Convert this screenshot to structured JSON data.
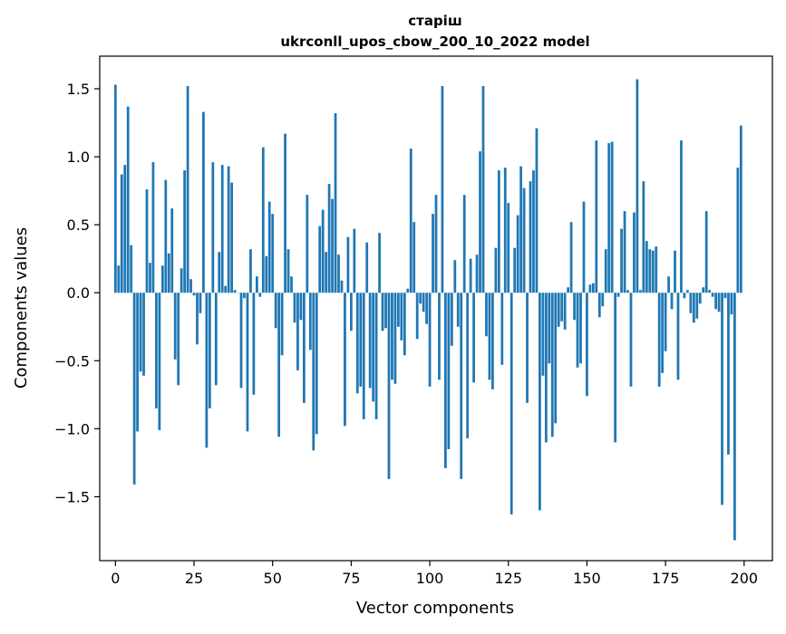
{
  "chart_data": {
    "type": "bar",
    "title_line1": "старіш",
    "title_line2": "ukrconll_upos_cbow_200_10_2022 model",
    "xlabel": "Vector components",
    "ylabel": "Components values",
    "xlim": [
      -5,
      209
    ],
    "ylim": [
      -1.97,
      1.74
    ],
    "xticks": [
      0,
      25,
      50,
      75,
      100,
      125,
      150,
      175,
      200
    ],
    "xtick_labels": [
      "0",
      "25",
      "50",
      "75",
      "100",
      "125",
      "150",
      "175",
      "200"
    ],
    "yticks": [
      -1.5,
      -1.0,
      -0.5,
      0.0,
      0.5,
      1.0,
      1.5
    ],
    "ytick_labels": [
      "−1.5",
      "−1.0",
      "−0.5",
      "0.0",
      "0.5",
      "1.0",
      "1.5"
    ],
    "grid": false,
    "bar_color": "#1f77b4",
    "x": [
      0,
      1,
      2,
      3,
      4,
      5,
      6,
      7,
      8,
      9,
      10,
      11,
      12,
      13,
      14,
      15,
      16,
      17,
      18,
      19,
      20,
      21,
      22,
      23,
      24,
      25,
      26,
      27,
      28,
      29,
      30,
      31,
      32,
      33,
      34,
      35,
      36,
      37,
      38,
      39,
      40,
      41,
      42,
      43,
      44,
      45,
      46,
      47,
      48,
      49,
      50,
      51,
      52,
      53,
      54,
      55,
      56,
      57,
      58,
      59,
      60,
      61,
      62,
      63,
      64,
      65,
      66,
      67,
      68,
      69,
      70,
      71,
      72,
      73,
      74,
      75,
      76,
      77,
      78,
      79,
      80,
      81,
      82,
      83,
      84,
      85,
      86,
      87,
      88,
      89,
      90,
      91,
      92,
      93,
      94,
      95,
      96,
      97,
      98,
      99,
      100,
      101,
      102,
      103,
      104,
      105,
      106,
      107,
      108,
      109,
      110,
      111,
      112,
      113,
      114,
      115,
      116,
      117,
      118,
      119,
      120,
      121,
      122,
      123,
      124,
      125,
      126,
      127,
      128,
      129,
      130,
      131,
      132,
      133,
      134,
      135,
      136,
      137,
      138,
      139,
      140,
      141,
      142,
      143,
      144,
      145,
      146,
      147,
      148,
      149,
      150,
      151,
      152,
      153,
      154,
      155,
      156,
      157,
      158,
      159,
      160,
      161,
      162,
      163,
      164,
      165,
      166,
      167,
      168,
      169,
      170,
      171,
      172,
      173,
      174,
      175,
      176,
      177,
      178,
      179,
      180,
      181,
      182,
      183,
      184,
      185,
      186,
      187,
      188,
      189,
      190,
      191,
      192,
      193,
      194,
      195,
      196,
      197,
      198,
      199
    ],
    "values": [
      1.53,
      0.2,
      0.87,
      0.94,
      1.37,
      0.35,
      -1.41,
      -1.02,
      -0.58,
      -0.61,
      0.76,
      0.22,
      0.96,
      -0.85,
      -1.01,
      0.2,
      0.83,
      0.29,
      0.62,
      -0.49,
      -0.68,
      0.18,
      0.9,
      1.52,
      0.1,
      -0.02,
      -0.38,
      -0.15,
      1.33,
      -1.14,
      -0.85,
      0.96,
      -0.68,
      0.3,
      0.94,
      0.05,
      0.93,
      0.81,
      0.02,
      0.0,
      -0.7,
      -0.04,
      -1.02,
      0.32,
      -0.75,
      0.12,
      -0.03,
      1.07,
      0.27,
      0.67,
      0.58,
      -0.26,
      -1.06,
      -0.46,
      1.17,
      0.32,
      0.12,
      -0.22,
      -0.57,
      -0.2,
      -0.81,
      0.72,
      -0.42,
      -1.16,
      -1.04,
      0.49,
      0.61,
      0.3,
      0.8,
      0.69,
      1.32,
      0.28,
      0.09,
      -0.98,
      0.41,
      -0.28,
      0.47,
      -0.74,
      -0.69,
      -0.93,
      0.37,
      -0.7,
      -0.8,
      -0.93,
      0.44,
      -0.28,
      -0.26,
      -1.37,
      -0.64,
      -0.67,
      -0.25,
      -0.35,
      -0.46,
      0.03,
      1.06,
      0.52,
      -0.34,
      -0.08,
      -0.14,
      -0.23,
      -0.69,
      0.58,
      0.72,
      -0.64,
      1.52,
      -1.29,
      -1.15,
      -0.39,
      0.24,
      -0.25,
      -1.37,
      0.72,
      -1.07,
      0.25,
      -0.66,
      0.28,
      1.04,
      1.52,
      -0.32,
      -0.64,
      -0.71,
      0.33,
      0.9,
      -0.53,
      0.92,
      0.66,
      -1.63,
      0.33,
      0.57,
      0.93,
      0.77,
      -0.81,
      0.82,
      0.9,
      1.21,
      -1.6,
      -0.61,
      -1.1,
      -0.52,
      -1.06,
      -0.96,
      -0.25,
      -0.21,
      -0.27,
      0.04,
      0.52,
      -0.2,
      -0.55,
      -0.52,
      0.67,
      -0.76,
      0.06,
      0.07,
      1.12,
      -0.18,
      -0.1,
      0.32,
      1.1,
      1.11,
      -1.1,
      -0.03,
      0.47,
      0.6,
      0.02,
      -0.69,
      0.59,
      1.57,
      0.02,
      0.82,
      0.38,
      0.32,
      0.31,
      0.34,
      -0.69,
      -0.59,
      -0.43,
      0.12,
      -0.12,
      0.31,
      -0.64,
      1.12,
      -0.04,
      0.02,
      -0.15,
      -0.22,
      -0.19,
      -0.08,
      0.04,
      0.6,
      0.02,
      -0.03,
      -0.12,
      -0.14,
      -1.56,
      -0.04,
      -1.19,
      -0.16,
      -1.82,
      0.92,
      1.23
    ]
  }
}
